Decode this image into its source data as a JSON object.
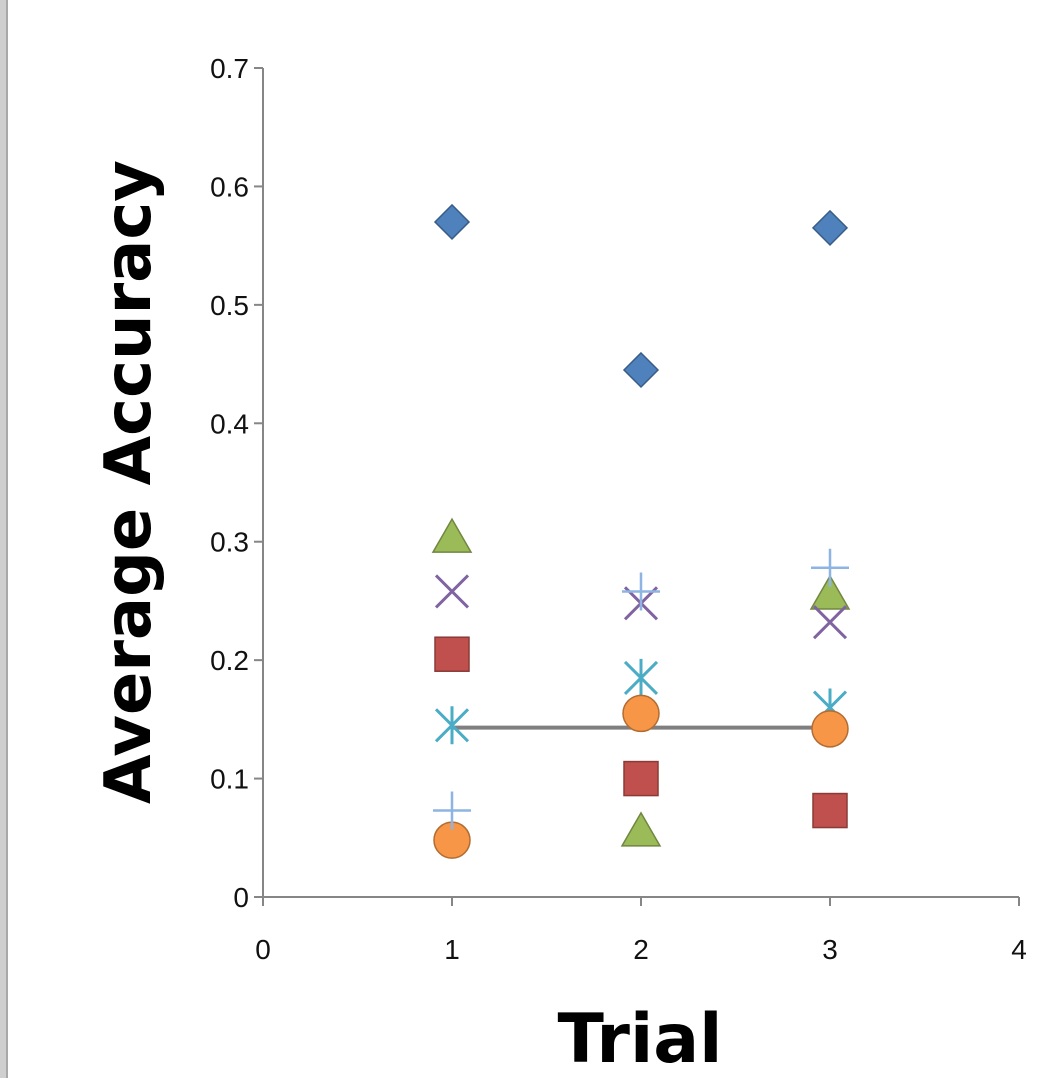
{
  "chart_data": {
    "type": "scatter",
    "title": "",
    "xlabel": "Trial",
    "ylabel": "Average Accuracy",
    "xlim": [
      0,
      4
    ],
    "ylim": [
      0,
      0.7
    ],
    "x_ticks": [
      "0",
      "1",
      "2",
      "3",
      "4"
    ],
    "y_ticks": [
      "0",
      "0.1",
      "0.2",
      "0.3",
      "0.4",
      "0.5",
      "0.6",
      "0.7"
    ],
    "grid": false,
    "legend": "none",
    "series": [
      {
        "marker": "diamond",
        "color": "#4f81bd",
        "points": [
          [
            1,
            0.57
          ],
          [
            2,
            0.445
          ],
          [
            3,
            0.565
          ]
        ]
      },
      {
        "marker": "square",
        "color": "#c0504d",
        "points": [
          [
            1,
            0.205
          ],
          [
            2,
            0.1
          ],
          [
            3,
            0.073
          ]
        ]
      },
      {
        "marker": "triangle",
        "color": "#9bbb59",
        "points": [
          [
            1,
            0.303
          ],
          [
            2,
            0.055
          ],
          [
            3,
            0.255
          ]
        ]
      },
      {
        "marker": "x",
        "color": "#8064a2",
        "points": [
          [
            1,
            0.258
          ],
          [
            2,
            0.248
          ],
          [
            3,
            0.232
          ]
        ]
      },
      {
        "marker": "asterisk",
        "color": "#4bacc6",
        "points": [
          [
            1,
            0.145
          ],
          [
            2,
            0.185
          ],
          [
            3,
            0.16
          ]
        ]
      },
      {
        "marker": "circle",
        "color": "#f79646",
        "points": [
          [
            1,
            0.048
          ],
          [
            2,
            0.155
          ],
          [
            3,
            0.142
          ]
        ]
      },
      {
        "marker": "plus",
        "color": "#8eb4e3",
        "points": [
          [
            1,
            0.073
          ],
          [
            2,
            0.258
          ],
          [
            3,
            0.278
          ]
        ]
      }
    ],
    "reference_line": {
      "color": "#7f7f7f",
      "x": [
        1,
        3
      ],
      "y": 0.143
    }
  }
}
